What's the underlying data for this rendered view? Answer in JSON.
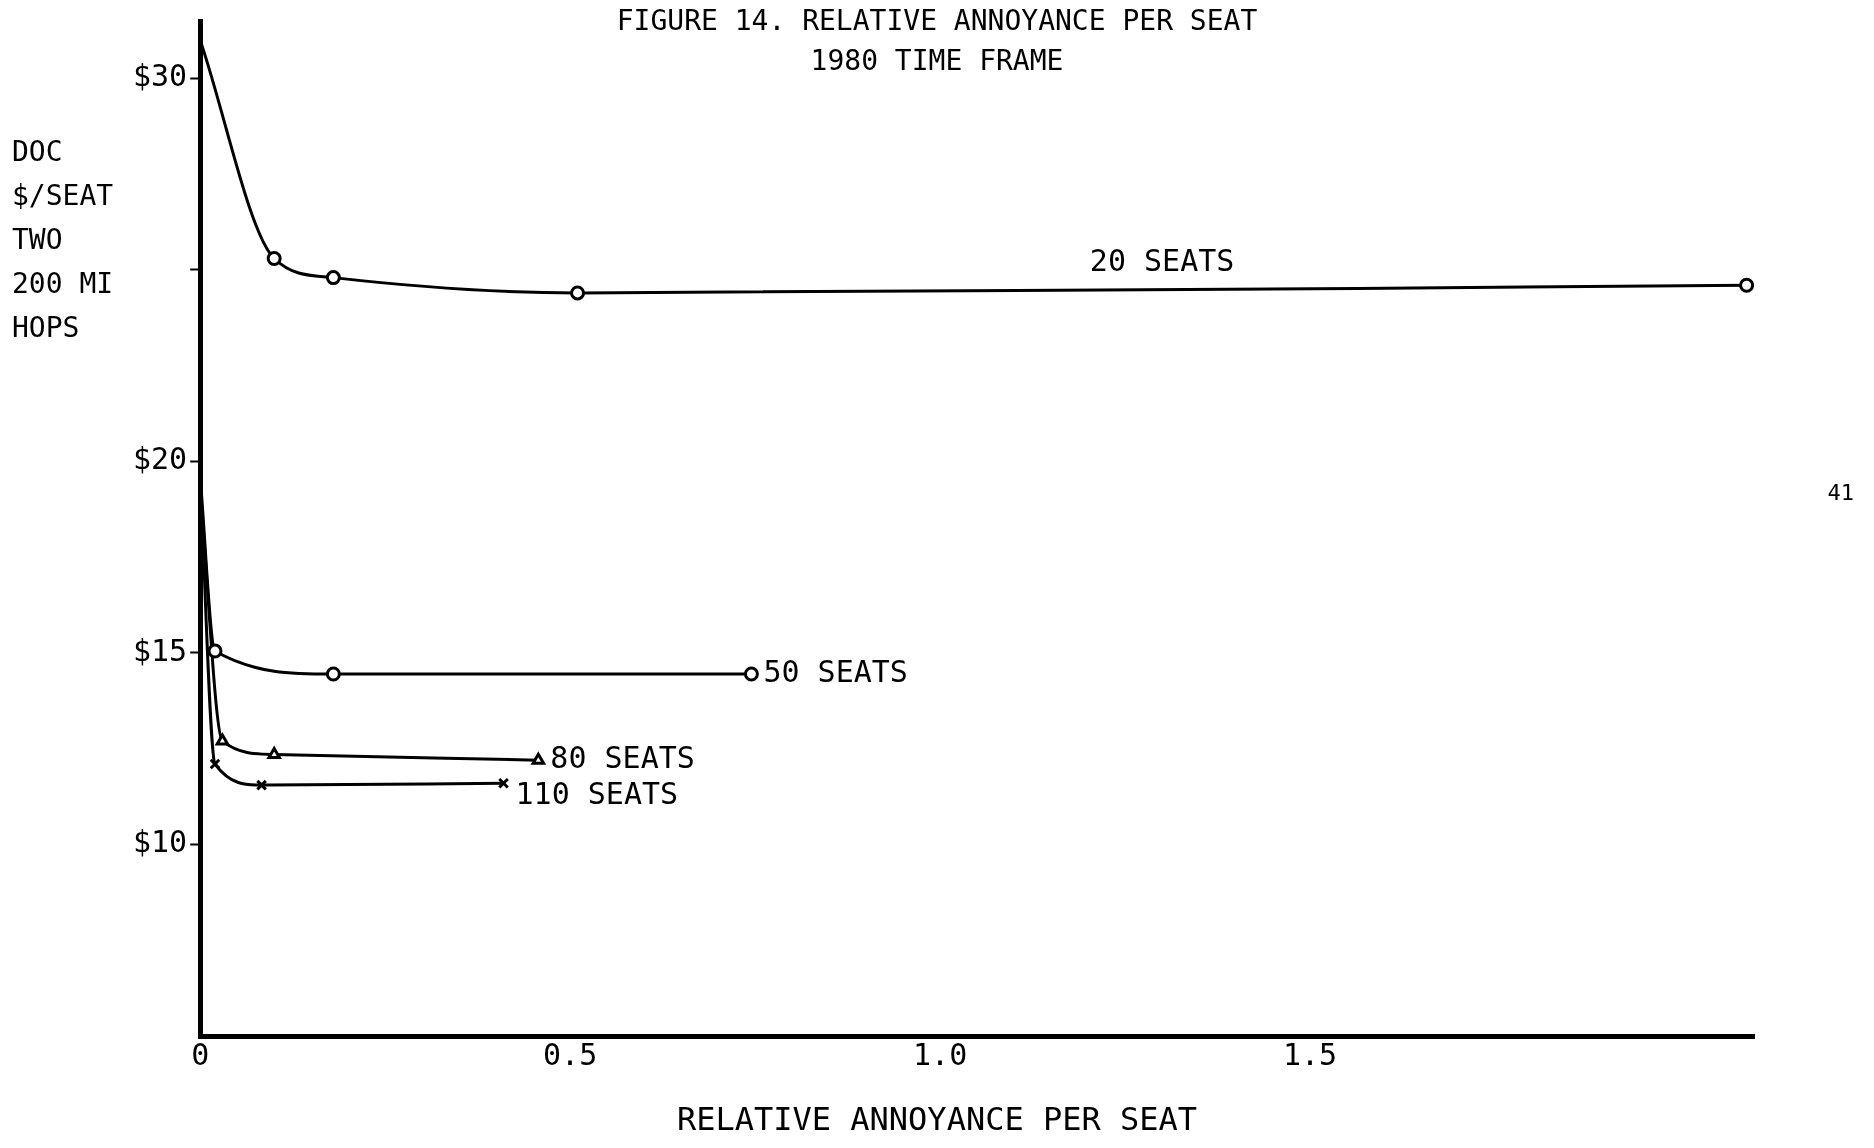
{
  "chart_data": {
    "type": "line",
    "title": "FIGURE 14. RELATIVE ANNOYANCE PER SEAT",
    "subtitle": "1980 TIME FRAME",
    "xlabel": "RELATIVE ANNOYANCE PER SEAT",
    "ylabel": "DOC\n$/SEAT\nTWO\n200 MI\nHOPS",
    "annotations": [
      "41"
    ],
    "xlim": [
      0,
      2.1
    ],
    "xticks": [
      0,
      0.5,
      {
        "value": 1,
        "label": "1.0"
      },
      1.5
    ],
    "ylim": [
      5,
      31.5
    ],
    "yticks": [
      {
        "value": 10,
        "label": "$10"
      },
      {
        "value": 15,
        "label": "$15"
      },
      {
        "value": 20,
        "label": "$20"
      },
      {
        "value": 25,
        "label": null
      },
      {
        "value": 30,
        "label": "$30"
      }
    ],
    "grid": false,
    "legend": false,
    "line_style": "solid",
    "series": [
      {
        "name": "20 SEATS",
        "color": "#000000",
        "marker": "circle",
        "x": [
          0,
          0.1,
          0.18,
          0.51,
          2.09
        ],
        "values": [
          31,
          25.3,
          24.8,
          24.4,
          24.6
        ]
      },
      {
        "name": "50 SEATS",
        "color": "#000000",
        "marker": "circle",
        "x": [
          0,
          0.02,
          0.18,
          0.745
        ],
        "values": [
          19.6,
          15.05,
          14.45,
          14.45
        ]
      },
      {
        "name": "80 SEATS",
        "color": "#000000",
        "marker": "triangle",
        "x": [
          0,
          0.03,
          0.1,
          0.457
        ],
        "values": [
          19.3,
          12.7,
          12.35,
          12.2
        ]
      },
      {
        "name": "110 SEATS",
        "color": "#000000",
        "marker": "cross",
        "x": [
          0,
          0.02,
          0.083,
          0.41
        ],
        "values": [
          19.5,
          12.1,
          11.55,
          11.6
        ]
      }
    ]
  }
}
